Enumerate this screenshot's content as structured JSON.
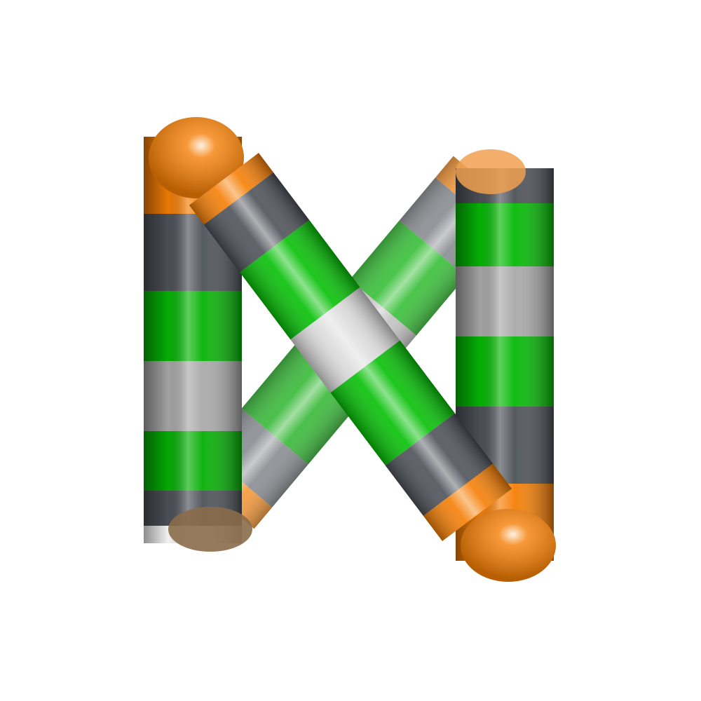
{
  "scene": {
    "subject": "striped-tube-knot",
    "background": "#ffffff",
    "colors": {
      "orange": "#f57f06",
      "dark_gray": "#4d5259",
      "green": "#05c005",
      "light_gray": "#a9a9a9",
      "white": "#eeeeee"
    },
    "stripe_sequence": [
      "orange",
      "dark_gray",
      "green",
      "light_gray",
      "green",
      "dark_gray",
      "orange"
    ]
  }
}
